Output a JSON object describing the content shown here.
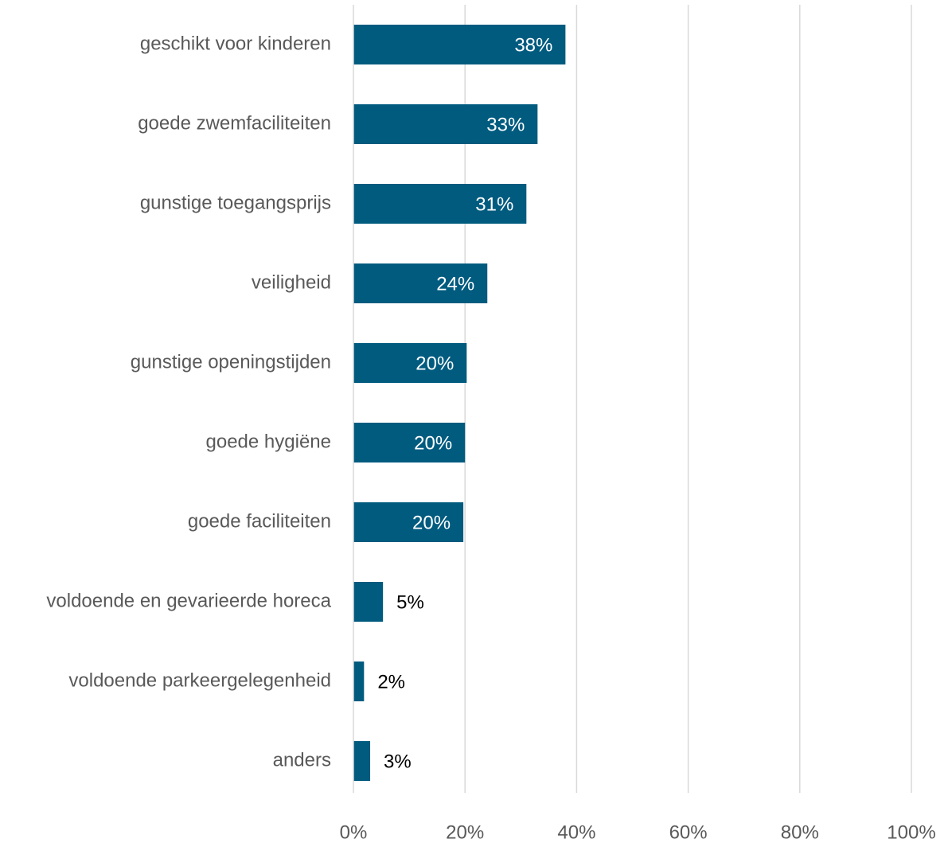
{
  "chart_data": {
    "type": "barh",
    "categories": [
      "geschikt voor kinderen",
      "goede zwemfaciliteiten",
      "gunstige toegangsprijs",
      "veiligheid",
      "gunstige openingstijden",
      "goede hygiëne",
      "goede faciliteiten",
      "voldoende en gevarieerde horeca",
      "voldoende parkeergelegenheid",
      "anders"
    ],
    "values": [
      38,
      33,
      31,
      24,
      20.3,
      20,
      19.7,
      5.3,
      1.9,
      3
    ],
    "value_labels": [
      "38%",
      "33%",
      "31%",
      "24%",
      "20%",
      "20%",
      "20%",
      "5%",
      "2%",
      "3%"
    ],
    "color": "#005b7f",
    "xlim": [
      0,
      100
    ],
    "xticks": [
      {
        "value": 0,
        "label": "0%"
      },
      {
        "value": 20,
        "label": "20%"
      },
      {
        "value": 40,
        "label": "40%"
      },
      {
        "value": 60,
        "label": "60%"
      },
      {
        "value": 80,
        "label": "80%"
      },
      {
        "value": 100,
        "label": "100%"
      }
    ],
    "grid": true
  }
}
